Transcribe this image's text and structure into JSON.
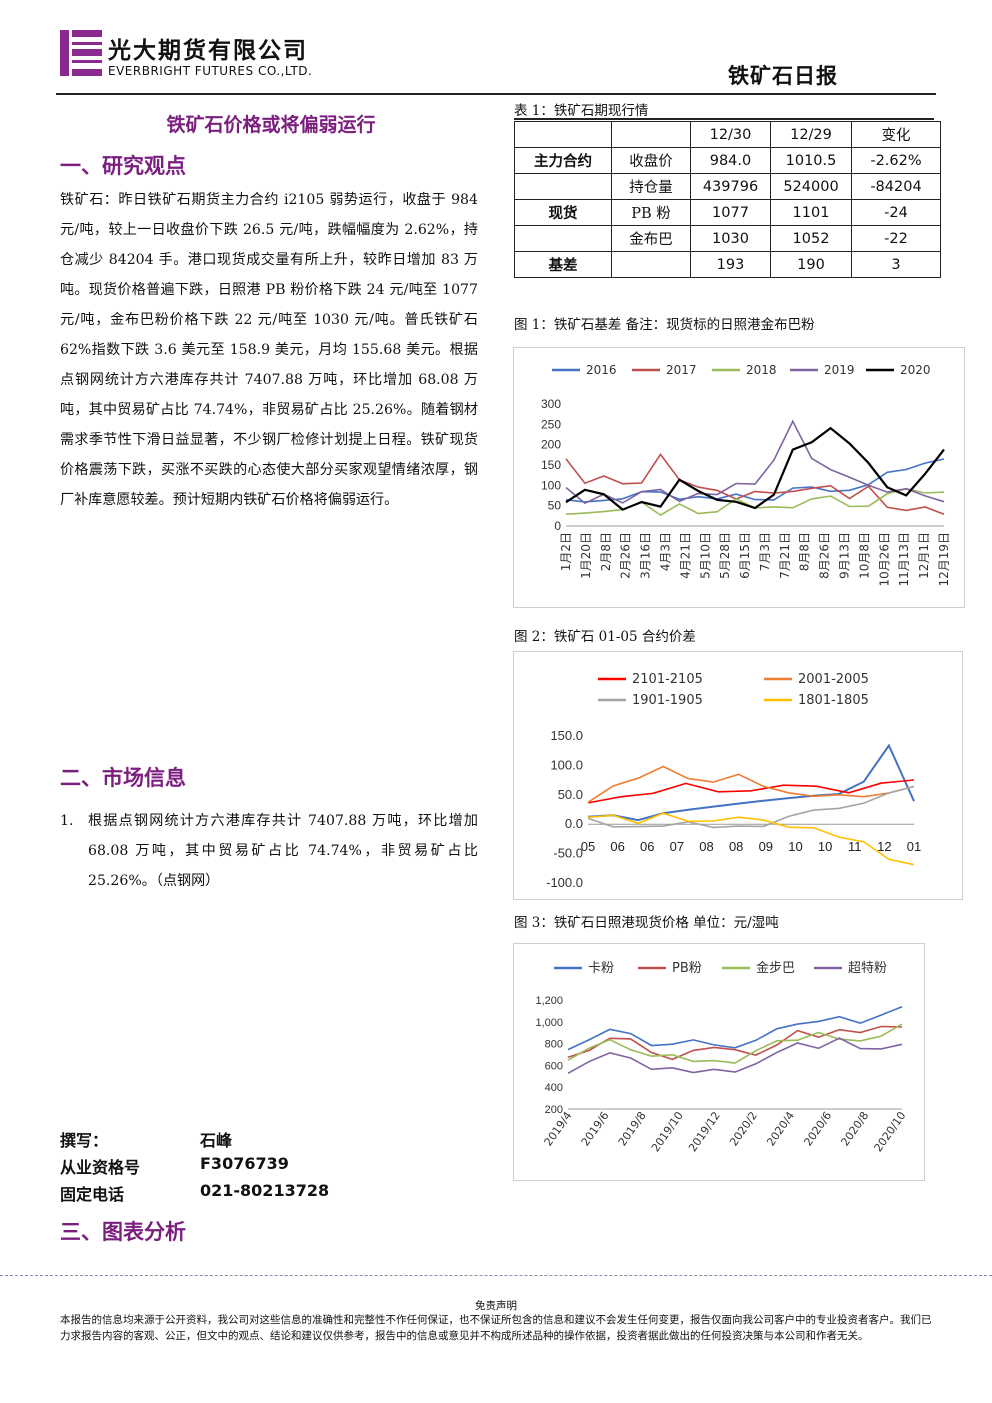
{
  "header": {
    "company_cn": "光大期货有限公司",
    "company_en": "EVERBRIGHT FUTURES CO.,LTD.",
    "report_title": "铁矿石日报"
  },
  "main_title": "铁矿石价格或将偏弱运行",
  "sections": {
    "s1": "一、研究观点",
    "s2": "二、市场信息",
    "s3": "三、图表分析"
  },
  "research_view": "铁矿石：昨日铁矿石期货主力合约 i2105 弱势运行，收盘于 984 元/吨，较上一日收盘价下跌 26.5 元/吨，跌幅幅度为 2.62%，持仓减少 84204 手。港口现货成交量有所上升，较昨日增加 83 万吨。现货价格普遍下跌，日照港 PB 粉价格下跌 24 元/吨至 1077 元/吨，金布巴粉价格下跌 22 元/吨至 1030 元/吨。普氏铁矿石 62%指数下跌 3.6 美元至 158.9 美元，月均 155.68 美元。根据点钢网统计方六港库存共计 7407.88 万吨，环比增加 68.08 万吨，其中贸易矿占比 74.74%，非贸易矿占比 25.26%。随着钢材需求季节性下滑日益显著，不少钢厂检修计划提上日程。铁矿现货价格震荡下跌，买涨不买跌的心态使大部分买家观望情绪浓厚，钢厂补库意愿较差。预计短期内铁矿石价格将偏弱运行。",
  "market_info": {
    "num": "1.",
    "text": "根据点钢网统计方六港库存共计 7407.88 万吨，环比增加 68.08 万吨，其中贸易矿占比 74.74%，非贸易矿占比 25.26%。（点钢网）"
  },
  "author": {
    "writer_label": "撰写：",
    "writer": "石峰",
    "cert_label": "从业资格号",
    "cert": "F3076739",
    "phone_label": "固定电话",
    "phone": "021-80213728"
  },
  "table1": {
    "caption": "表 1：铁矿石期现行情",
    "headers": [
      "12/30",
      "12/29",
      "变化"
    ],
    "rows": [
      {
        "group": "主力合约",
        "name": "收盘价",
        "v1": "984.0",
        "v2": "1010.5",
        "chg": "-2.62%"
      },
      {
        "group": "",
        "name": "持仓量",
        "v1": "439796",
        "v2": "524000",
        "chg": "-84204"
      },
      {
        "group": "现货",
        "name": "PB 粉",
        "v1": "1077",
        "v2": "1101",
        "chg": "-24"
      },
      {
        "group": "",
        "name": "金布巴",
        "v1": "1030",
        "v2": "1052",
        "chg": "-22"
      },
      {
        "group": "基差",
        "name": "",
        "v1": "193",
        "v2": "190",
        "chg": "3"
      }
    ]
  },
  "fig_captions": {
    "fig1": "图 1：铁矿石基差   备注：现货标的日照港金布巴粉",
    "fig2": "图 2：铁矿石 01-05 合约价差",
    "fig3": "图 3：铁矿石日照港现货价格 单位：元/湿吨"
  },
  "chart_data": [
    {
      "type": "line",
      "ylim": [
        0,
        300
      ],
      "yticks": [
        "300",
        "250",
        "200",
        "150",
        "100",
        "50",
        "0"
      ],
      "x_ticks": [
        "1月2日",
        "1月20日",
        "2月8日",
        "2月26日",
        "3月16日",
        "4月3日",
        "4月21日",
        "5月10日",
        "5月28日",
        "6月15日",
        "7月3日",
        "7月21日",
        "8月8日",
        "8月26日",
        "9月13日",
        "10月8日",
        "10月26日",
        "11月13日",
        "12月1日",
        "12月19日"
      ],
      "legend_position": "top",
      "series": [
        {
          "name": "2016",
          "color": "#4472c4",
          "values": [
            60,
            62,
            58,
            66,
            70,
            80,
            72,
            68,
            76,
            70,
            74,
            78,
            80,
            85,
            95,
            100,
            110,
            120,
            130,
            150,
            165
          ]
        },
        {
          "name": "2017",
          "color": "#c0504d",
          "values": [
            170,
            120,
            110,
            90,
            100,
            180,
            120,
            100,
            95,
            80,
            70,
            90,
            75,
            80,
            85,
            80,
            90,
            60,
            45,
            35,
            30
          ]
        },
        {
          "name": "2018",
          "color": "#9bbb59",
          "values": [
            40,
            45,
            50,
            55,
            45,
            40,
            42,
            45,
            50,
            52,
            55,
            60,
            58,
            55,
            60,
            62,
            60,
            70,
            80,
            90,
            95
          ]
        },
        {
          "name": "2019",
          "color": "#8064a2",
          "values": [
            80,
            70,
            65,
            60,
            70,
            75,
            70,
            72,
            80,
            90,
            100,
            150,
            255,
            160,
            150,
            130,
            100,
            90,
            80,
            75,
            70
          ]
        },
        {
          "name": "2020",
          "color": "#000000",
          "values": [
            70,
            80,
            65,
            55,
            50,
            45,
            120,
            90,
            70,
            60,
            55,
            70,
            180,
            200,
            230,
            190,
            160,
            110,
            90,
            140,
            190
          ]
        }
      ]
    },
    {
      "type": "line",
      "ylim": [
        -100,
        150
      ],
      "yticks": [
        "150.0",
        "100.0",
        "50.0",
        "0.0",
        "-50.0",
        "-100.0"
      ],
      "x_ticks": [
        "05",
        "06",
        "06",
        "07",
        "08",
        "08",
        "09",
        "10",
        "10",
        "11",
        "12",
        "01"
      ],
      "legend_position": "top",
      "series": [
        {
          "name": "2101-2105",
          "color": "#ff0000",
          "values": [
            40,
            50,
            55,
            65,
            60,
            58,
            62,
            60,
            55,
            65,
            70
          ]
        },
        {
          "name": "2001-2005",
          "color": "#ed7d31",
          "values": [
            35,
            60,
            80,
            95,
            75,
            70,
            80,
            65,
            55,
            50,
            45,
            45,
            50,
            60
          ]
        },
        {
          "name": "1901-1905",
          "color": "#a5a5a5",
          "values": [
            5,
            0,
            -5,
            -3,
            0,
            -5,
            -8,
            0,
            10,
            20,
            30,
            40,
            50,
            60
          ]
        },
        {
          "name": "1801-1805",
          "color": "#ffc000",
          "values": [
            15,
            10,
            5,
            15,
            10,
            8,
            10,
            5,
            -5,
            -10,
            -20,
            -30,
            -55,
            -70
          ]
        }
      ],
      "extra_series_blue": [
        10,
        10,
        12,
        15,
        20,
        25,
        30,
        35,
        40,
        45,
        55,
        70,
        130,
        40
      ]
    },
    {
      "type": "line",
      "ylim": [
        200,
        1200
      ],
      "yticks": [
        "1,200",
        "1,000",
        "800",
        "600",
        "400",
        "200"
      ],
      "x_ticks": [
        "2019/4",
        "2019/6",
        "2019/8",
        "2019/10",
        "2019/12",
        "2020/2",
        "2020/4",
        "2020/6",
        "2020/8",
        "2020/10"
      ],
      "legend_position": "top",
      "series": [
        {
          "name": "卡粉",
          "color": "#4472c4",
          "values": [
            780,
            850,
            960,
            880,
            820,
            780,
            790,
            800,
            780,
            820,
            900,
            960,
            980,
            1010,
            1030,
            1050,
            1100
          ]
        },
        {
          "name": "PB粉",
          "color": "#c0504d",
          "values": [
            700,
            780,
            880,
            800,
            740,
            700,
            720,
            720,
            700,
            740,
            820,
            880,
            900,
            920,
            900,
            920,
            990
          ]
        },
        {
          "name": "金步巴",
          "color": "#9bbb59",
          "values": [
            660,
            740,
            840,
            760,
            700,
            660,
            680,
            680,
            660,
            700,
            780,
            840,
            860,
            880,
            860,
            890,
            970
          ]
        },
        {
          "name": "超特粉",
          "color": "#8064a2",
          "values": [
            560,
            640,
            760,
            660,
            600,
            560,
            580,
            580,
            560,
            600,
            680,
            760,
            780,
            820,
            780,
            790,
            820
          ]
        }
      ]
    }
  ],
  "disclaimer": {
    "title": "免责声明",
    "text": "本报告的信息均来源于公开资料，我公司对这些信息的准确性和完整性不作任何保证，也不保证所包含的信息和建议不会发生任何变更，报告仅面向我公司客户中的专业投资者客户。我们已力求报告内容的客观、公正，但文中的观点、结论和建议仅供参考，报告中的信息或意见并不构成所述品种的操作依据，投资者据此做出的任何投资决策与本公司和作者无关。"
  }
}
